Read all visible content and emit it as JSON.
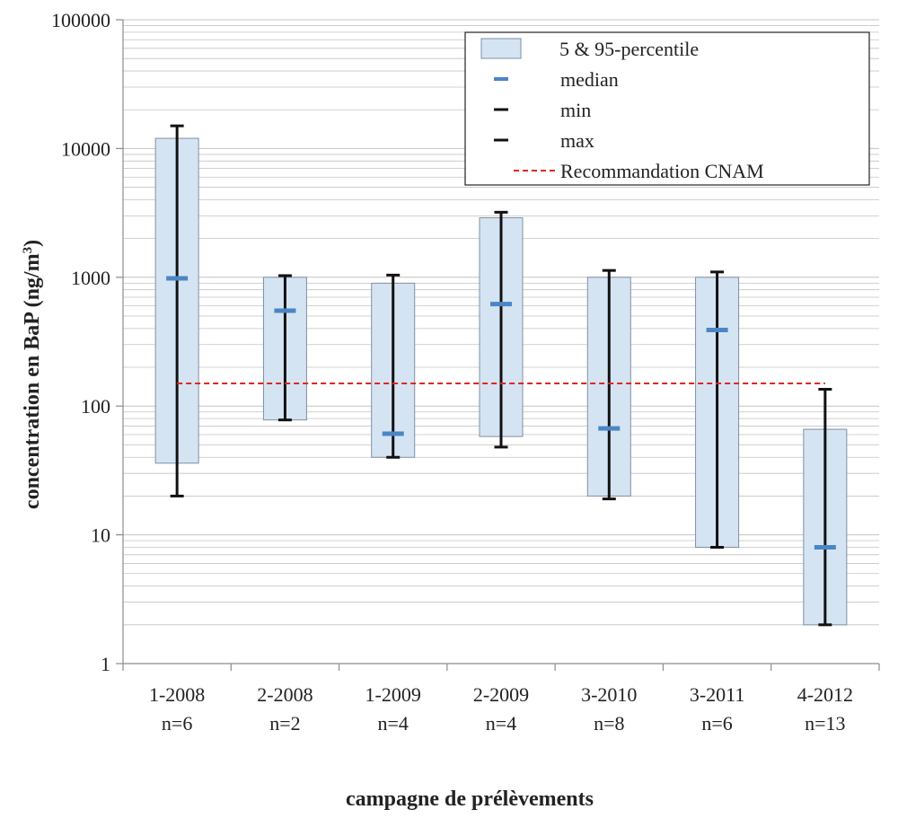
{
  "chart_data": {
    "type": "box",
    "title": "",
    "xlabel": "campagne de prélèvements",
    "ylabel": {
      "main": "concentration en BaP",
      "unit_open": "(ng/m",
      "unit_sup": "3",
      "unit_close": ")"
    },
    "yscale": "log",
    "ylim": [
      1,
      100000
    ],
    "yticks": [
      "1",
      "10",
      "100",
      "1000",
      "10000",
      "100000"
    ],
    "categories": [
      {
        "label": "1-2008",
        "n": "n=6"
      },
      {
        "label": "2-2008",
        "n": "n=2"
      },
      {
        "label": "1-2009",
        "n": "n=4"
      },
      {
        "label": "2-2009",
        "n": "n=4"
      },
      {
        "label": "3-2010",
        "n": "n=8"
      },
      {
        "label": "3-2011",
        "n": "n=6"
      },
      {
        "label": "4-2012",
        "n": "n=13"
      }
    ],
    "series": [
      {
        "key": "p5",
        "values": [
          36,
          78,
          40,
          58,
          20,
          8,
          2
        ]
      },
      {
        "key": "p95",
        "values": [
          12000,
          1000,
          900,
          2900,
          1000,
          1000,
          66
        ]
      },
      {
        "key": "median",
        "values": [
          980,
          550,
          61,
          620,
          67,
          390,
          8
        ]
      },
      {
        "key": "min",
        "values": [
          20,
          78,
          40,
          48,
          19,
          8,
          2
        ]
      },
      {
        "key": "max",
        "values": [
          15000,
          1030,
          1040,
          3200,
          1130,
          1100,
          135
        ]
      }
    ],
    "reference_line": {
      "value": 150,
      "from_category": 0,
      "to_category": 6
    },
    "legend": {
      "position": "top-right",
      "items": [
        {
          "key": "box",
          "label": "5 & 95-percentile"
        },
        {
          "key": "median",
          "label": "median"
        },
        {
          "key": "min",
          "label": "min"
        },
        {
          "key": "max",
          "label": "max"
        },
        {
          "key": "ref",
          "label": "Recommandation CNAM"
        }
      ]
    },
    "colors": {
      "box_fill": "#d5e4f3",
      "box_stroke": "#7f8fa3",
      "median": "#4a86c5",
      "whisker": "#111111",
      "reference": "#e0261e",
      "grid": "#c4c4c4",
      "axis": "#8c8c8c"
    },
    "grid": true
  }
}
